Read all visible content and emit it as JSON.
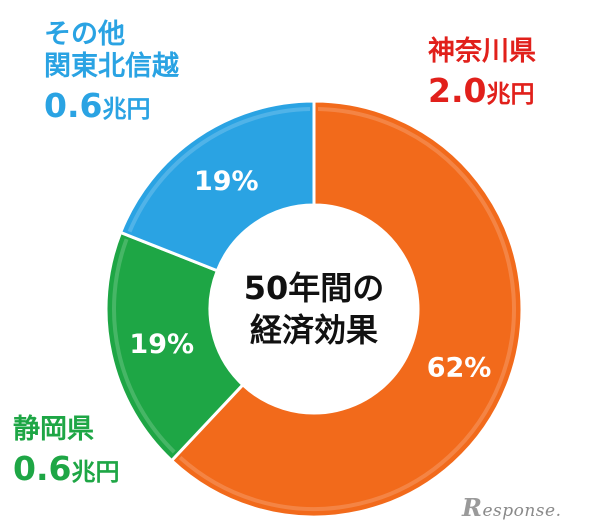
{
  "chart_data": {
    "type": "pie",
    "title": "",
    "center_label": [
      "50年間の",
      "経済効果"
    ],
    "slices": [
      {
        "name": "神奈川県",
        "amount": "2.0",
        "unit": "兆円",
        "percent_label": "62%",
        "value": 62,
        "color": "#f26a1b",
        "text_color": "#e1201b"
      },
      {
        "name": "静岡県",
        "amount": "0.6",
        "unit": "兆円",
        "percent_label": "19%",
        "value": 19,
        "color": "#1ea645",
        "text_color": "#1ea645"
      },
      {
        "name": "その他\n関東北信越",
        "amount": "0.6",
        "unit": "兆円",
        "percent_label": "19%",
        "value": 19,
        "color": "#2aa3e3",
        "text_color": "#2aa3e3"
      }
    ]
  },
  "labels": {
    "kanagawa": {
      "name": "神奈川県",
      "amount": "2.0",
      "unit": "兆円"
    },
    "other": {
      "name_line1": "その他",
      "name_line2": "関東北信越",
      "amount": "0.6",
      "unit": "兆円"
    },
    "shizuoka": {
      "name": "静岡県",
      "amount": "0.6",
      "unit": "兆円"
    }
  },
  "watermark": {
    "big": "R",
    "rest": "esponse."
  }
}
